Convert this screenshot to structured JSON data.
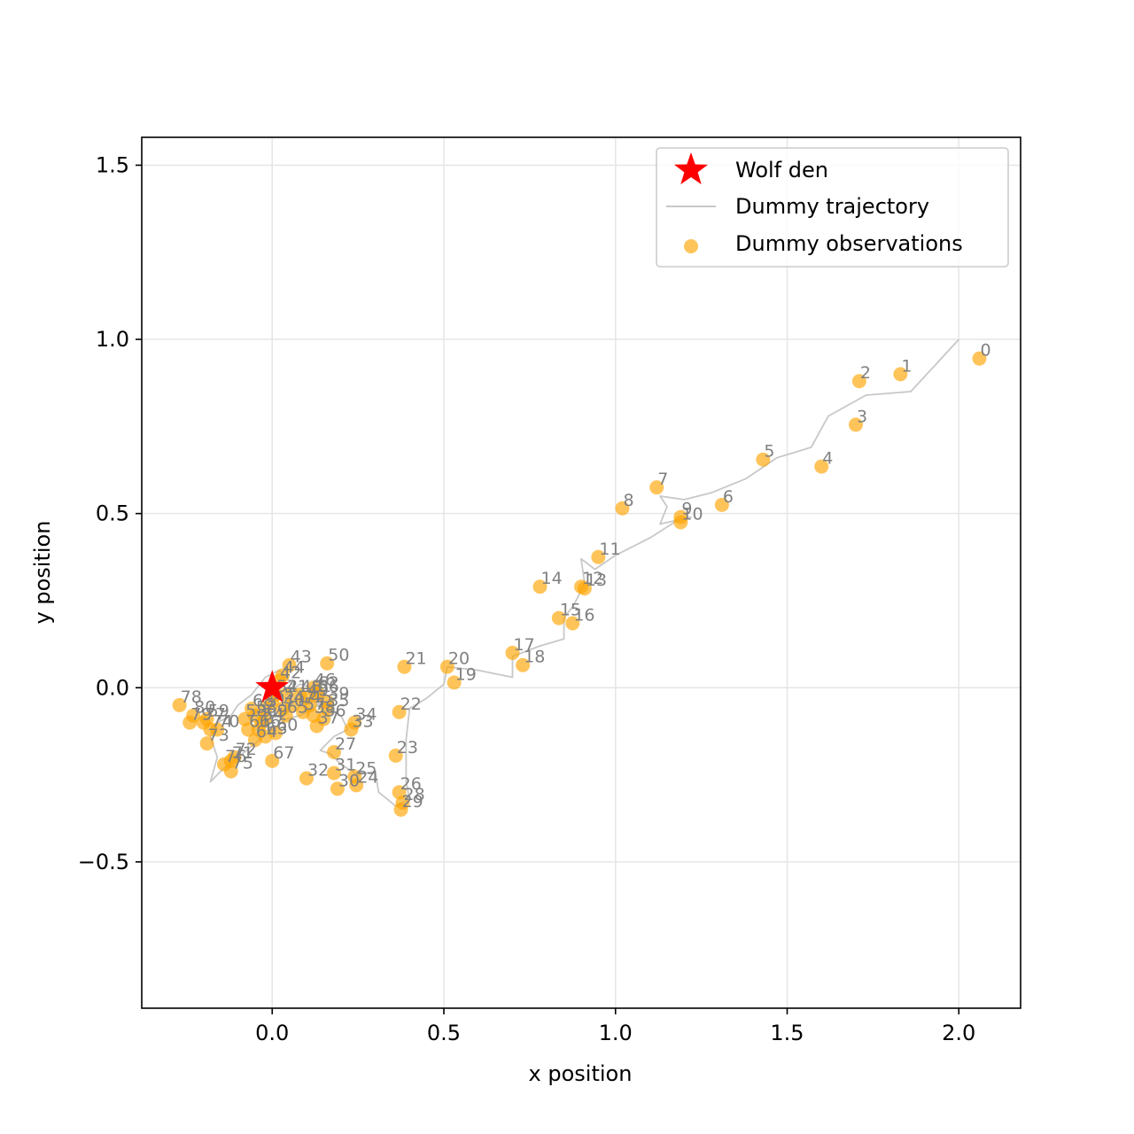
{
  "chart_data": {
    "type": "scatter",
    "xlabel": "x position",
    "ylabel": "y position",
    "xlim": [
      -0.38,
      2.18
    ],
    "ylim": [
      -0.92,
      1.58
    ],
    "xticks": [
      0.0,
      0.5,
      1.0,
      1.5,
      2.0
    ],
    "xtick_labels": [
      "0.0",
      "0.5",
      "1.0",
      "1.5",
      "2.0"
    ],
    "yticks": [
      -0.5,
      0.0,
      0.5,
      1.0,
      1.5
    ],
    "ytick_labels": [
      "−0.5",
      "0.0",
      "0.5",
      "1.0",
      "1.5"
    ],
    "grid": true,
    "legend_position": "top-right",
    "colors": {
      "den": "#ff0000",
      "trajectory": "#c8c8c8",
      "observations": "#ffa500",
      "point_labels": "#808080"
    },
    "den": {
      "name": "Wolf den",
      "x": 0.0,
      "y": 0.0
    },
    "trajectory": {
      "name": "Dummy trajectory",
      "points": [
        [
          2.0,
          1.0
        ],
        [
          1.86,
          0.85
        ],
        [
          1.73,
          0.84
        ],
        [
          1.62,
          0.78
        ],
        [
          1.57,
          0.69
        ],
        [
          1.47,
          0.66
        ],
        [
          1.38,
          0.6
        ],
        [
          1.28,
          0.56
        ],
        [
          1.2,
          0.54
        ],
        [
          1.13,
          0.55
        ],
        [
          1.15,
          0.52
        ],
        [
          1.13,
          0.47
        ],
        [
          1.22,
          0.49
        ],
        [
          1.18,
          0.48
        ],
        [
          1.1,
          0.43
        ],
        [
          1.0,
          0.38
        ],
        [
          0.94,
          0.34
        ],
        [
          0.9,
          0.37
        ],
        [
          0.91,
          0.3
        ],
        [
          0.88,
          0.24
        ],
        [
          0.85,
          0.2
        ],
        [
          0.85,
          0.14
        ],
        [
          0.78,
          0.12
        ],
        [
          0.7,
          0.09
        ],
        [
          0.7,
          0.03
        ],
        [
          0.6,
          0.05
        ],
        [
          0.51,
          0.06
        ],
        [
          0.5,
          0.01
        ],
        [
          0.45,
          -0.03
        ],
        [
          0.4,
          -0.06
        ],
        [
          0.39,
          -0.15
        ],
        [
          0.39,
          -0.27
        ],
        [
          0.4,
          -0.32
        ],
        [
          0.36,
          -0.34
        ],
        [
          0.31,
          -0.3
        ],
        [
          0.3,
          -0.24
        ],
        [
          0.25,
          -0.25
        ],
        [
          0.2,
          -0.22
        ],
        [
          0.17,
          -0.19
        ],
        [
          0.14,
          -0.18
        ],
        [
          0.18,
          -0.14
        ],
        [
          0.22,
          -0.12
        ],
        [
          0.2,
          -0.08
        ],
        [
          0.16,
          -0.06
        ],
        [
          0.12,
          -0.04
        ],
        [
          0.08,
          -0.02
        ],
        [
          0.05,
          0.02
        ],
        [
          0.02,
          0.05
        ],
        [
          -0.02,
          0.03
        ],
        [
          -0.06,
          -0.02
        ],
        [
          -0.1,
          -0.05
        ],
        [
          -0.12,
          -0.08
        ],
        [
          -0.16,
          -0.1
        ],
        [
          -0.18,
          -0.14
        ],
        [
          -0.16,
          -0.2
        ],
        [
          -0.18,
          -0.27
        ],
        [
          -0.14,
          -0.23
        ],
        [
          -0.1,
          -0.2
        ],
        [
          -0.05,
          -0.16
        ],
        [
          0.0,
          -0.12
        ],
        [
          0.04,
          -0.09
        ],
        [
          0.08,
          -0.08
        ],
        [
          0.12,
          -0.06
        ],
        [
          0.15,
          -0.03
        ],
        [
          0.12,
          0.0
        ],
        [
          0.08,
          0.01
        ],
        [
          0.04,
          -0.02
        ]
      ]
    },
    "observations": {
      "name": "Dummy observations",
      "points": [
        {
          "label": "0",
          "x": 2.06,
          "y": 0.945
        },
        {
          "label": "1",
          "x": 1.83,
          "y": 0.9
        },
        {
          "label": "2",
          "x": 1.71,
          "y": 0.88
        },
        {
          "label": "3",
          "x": 1.7,
          "y": 0.755
        },
        {
          "label": "4",
          "x": 1.6,
          "y": 0.635
        },
        {
          "label": "5",
          "x": 1.43,
          "y": 0.655
        },
        {
          "label": "6",
          "x": 1.31,
          "y": 0.525
        },
        {
          "label": "7",
          "x": 1.12,
          "y": 0.575
        },
        {
          "label": "8",
          "x": 1.02,
          "y": 0.515
        },
        {
          "label": "9",
          "x": 1.19,
          "y": 0.49
        },
        {
          "label": "10",
          "x": 1.19,
          "y": 0.475
        },
        {
          "label": "11",
          "x": 0.95,
          "y": 0.375
        },
        {
          "label": "12",
          "x": 0.9,
          "y": 0.29
        },
        {
          "label": "13",
          "x": 0.91,
          "y": 0.285
        },
        {
          "label": "14",
          "x": 0.78,
          "y": 0.29
        },
        {
          "label": "15",
          "x": 0.835,
          "y": 0.2
        },
        {
          "label": "16",
          "x": 0.875,
          "y": 0.185
        },
        {
          "label": "17",
          "x": 0.7,
          "y": 0.1
        },
        {
          "label": "18",
          "x": 0.73,
          "y": 0.065
        },
        {
          "label": "19",
          "x": 0.53,
          "y": 0.015
        },
        {
          "label": "20",
          "x": 0.51,
          "y": 0.06
        },
        {
          "label": "21",
          "x": 0.385,
          "y": 0.06
        },
        {
          "label": "22",
          "x": 0.37,
          "y": -0.07
        },
        {
          "label": "23",
          "x": 0.36,
          "y": -0.195
        },
        {
          "label": "24",
          "x": 0.245,
          "y": -0.28
        },
        {
          "label": "25",
          "x": 0.24,
          "y": -0.255
        },
        {
          "label": "26",
          "x": 0.37,
          "y": -0.3
        },
        {
          "label": "27",
          "x": 0.18,
          "y": -0.185
        },
        {
          "label": "28",
          "x": 0.38,
          "y": -0.33
        },
        {
          "label": "29",
          "x": 0.375,
          "y": -0.35
        },
        {
          "label": "30",
          "x": 0.19,
          "y": -0.29
        },
        {
          "label": "31",
          "x": 0.18,
          "y": -0.245
        },
        {
          "label": "32",
          "x": 0.1,
          "y": -0.26
        },
        {
          "label": "33",
          "x": 0.23,
          "y": -0.12
        },
        {
          "label": "34",
          "x": 0.24,
          "y": -0.1
        },
        {
          "label": "35",
          "x": 0.16,
          "y": -0.06
        },
        {
          "label": "36",
          "x": 0.15,
          "y": -0.09
        },
        {
          "label": "37",
          "x": 0.13,
          "y": -0.11
        },
        {
          "label": "38",
          "x": 0.12,
          "y": -0.08
        },
        {
          "label": "39",
          "x": 0.16,
          "y": -0.04
        },
        {
          "label": "40",
          "x": 0.03,
          "y": -0.06
        },
        {
          "label": "41",
          "x": 0.04,
          "y": -0.02
        },
        {
          "label": "42",
          "x": 0.02,
          "y": 0.02
        },
        {
          "label": "43",
          "x": 0.05,
          "y": 0.065
        },
        {
          "label": "44",
          "x": 0.03,
          "y": 0.035
        },
        {
          "label": "45",
          "x": 0.11,
          "y": -0.05
        },
        {
          "label": "46",
          "x": 0.12,
          "y": 0.0
        },
        {
          "label": "47",
          "x": 0.06,
          "y": -0.05
        },
        {
          "label": "48",
          "x": 0.08,
          "y": -0.02
        },
        {
          "label": "49",
          "x": 0.1,
          "y": -0.03
        },
        {
          "label": "50",
          "x": 0.16,
          "y": 0.07
        },
        {
          "label": "51",
          "x": -0.02,
          "y": -0.06
        },
        {
          "label": "52",
          "x": 0.01,
          "y": -0.02
        },
        {
          "label": "53",
          "x": -0.05,
          "y": -0.08
        },
        {
          "label": "54",
          "x": -0.03,
          "y": -0.1
        },
        {
          "label": "55",
          "x": 0.0,
          "y": -0.04
        },
        {
          "label": "56",
          "x": 0.13,
          "y": -0.02
        },
        {
          "label": "57",
          "x": 0.09,
          "y": -0.07
        },
        {
          "label": "58",
          "x": -0.08,
          "y": -0.09
        },
        {
          "label": "59",
          "x": -0.19,
          "y": -0.09
        },
        {
          "label": "60",
          "x": 0.01,
          "y": -0.13
        },
        {
          "label": "61",
          "x": -0.07,
          "y": -0.12
        },
        {
          "label": "62",
          "x": 0.13,
          "y": -0.01
        },
        {
          "label": "63",
          "x": -0.02,
          "y": -0.14
        },
        {
          "label": "64",
          "x": -0.05,
          "y": -0.15
        },
        {
          "label": "65",
          "x": 0.04,
          "y": -0.08
        },
        {
          "label": "66",
          "x": -0.04,
          "y": -0.12
        },
        {
          "label": "67",
          "x": 0.0,
          "y": -0.21
        },
        {
          "label": "68",
          "x": -0.06,
          "y": -0.06
        },
        {
          "label": "69",
          "x": -0.02,
          "y": -0.09
        },
        {
          "label": "70",
          "x": -0.16,
          "y": -0.12
        },
        {
          "label": "71",
          "x": -0.12,
          "y": -0.21
        },
        {
          "label": "72",
          "x": -0.11,
          "y": -0.2
        },
        {
          "label": "73",
          "x": -0.19,
          "y": -0.16
        },
        {
          "label": "74",
          "x": -0.18,
          "y": -0.12
        },
        {
          "label": "75",
          "x": -0.12,
          "y": -0.24
        },
        {
          "label": "76",
          "x": -0.14,
          "y": -0.22
        },
        {
          "label": "77",
          "x": -0.2,
          "y": -0.1
        },
        {
          "label": "78",
          "x": -0.27,
          "y": -0.05
        },
        {
          "label": "79",
          "x": -0.24,
          "y": -0.1
        },
        {
          "label": "80",
          "x": -0.23,
          "y": -0.08
        }
      ]
    }
  }
}
